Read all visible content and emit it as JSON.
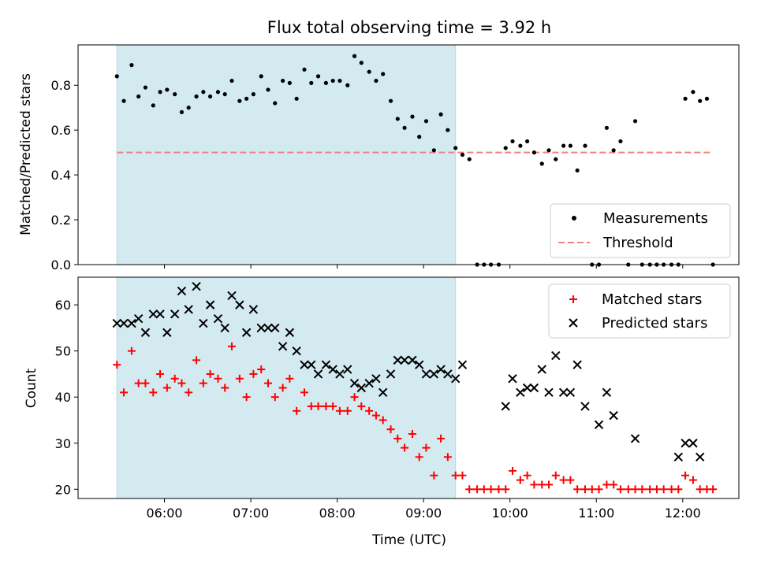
{
  "chart_data": [
    {
      "type": "scatter",
      "title": "Flux total observing time = 3.92 h",
      "xlabel": "",
      "ylabel": "Matched/Predicted stars",
      "ylim": [
        0,
        0.98
      ],
      "yticks": [
        0.0,
        0.2,
        0.4,
        0.6,
        0.8
      ],
      "ytick_labels": [
        "0.0",
        "0.2",
        "0.4",
        "0.6",
        "0.8"
      ],
      "legend_position": "lower-right",
      "shaded_span": {
        "start": 5.45,
        "end": 9.37,
        "color": "#d3eaf1"
      },
      "threshold": {
        "name": "Threshold",
        "value": 0.5,
        "start": 5.45,
        "end": 12.35,
        "color": "#f08080",
        "style": "dashed"
      },
      "series": [
        {
          "name": "Measurements",
          "marker": "dot",
          "color": "#000000",
          "x": [
            5.45,
            5.53,
            5.62,
            5.7,
            5.78,
            5.87,
            5.95,
            6.03,
            6.12,
            6.2,
            6.28,
            6.37,
            6.45,
            6.53,
            6.62,
            6.7,
            6.78,
            6.87,
            6.95,
            7.03,
            7.12,
            7.2,
            7.28,
            7.37,
            7.45,
            7.53,
            7.62,
            7.7,
            7.78,
            7.87,
            7.95,
            8.03,
            8.12,
            8.2,
            8.28,
            8.37,
            8.45,
            8.53,
            8.62,
            8.7,
            8.78,
            8.87,
            8.95,
            9.03,
            9.12,
            9.2,
            9.28,
            9.37,
            9.45,
            9.53,
            9.62,
            9.7,
            9.78,
            9.87,
            9.95,
            10.03,
            10.12,
            10.2,
            10.28,
            10.37,
            10.45,
            10.53,
            10.62,
            10.7,
            10.78,
            10.87,
            10.95,
            11.03,
            11.12,
            11.2,
            11.28,
            11.37,
            11.45,
            11.53,
            11.62,
            11.7,
            11.78,
            11.87,
            11.95,
            12.03,
            12.12,
            12.2,
            12.28,
            12.35
          ],
          "y": [
            0.84,
            0.73,
            0.89,
            0.75,
            0.79,
            0.71,
            0.77,
            0.78,
            0.76,
            0.68,
            0.7,
            0.75,
            0.77,
            0.75,
            0.77,
            0.76,
            0.82,
            0.73,
            0.74,
            0.76,
            0.84,
            0.78,
            0.72,
            0.82,
            0.81,
            0.74,
            0.87,
            0.81,
            0.84,
            0.81,
            0.82,
            0.82,
            0.8,
            0.93,
            0.9,
            0.86,
            0.82,
            0.85,
            0.73,
            0.65,
            0.61,
            0.66,
            0.57,
            0.64,
            0.51,
            0.67,
            0.6,
            0.52,
            0.49,
            0.47,
            0.0,
            0.0,
            0.0,
            0.0,
            0.52,
            0.55,
            0.53,
            0.55,
            0.5,
            0.45,
            0.51,
            0.47,
            0.53,
            0.53,
            0.42,
            0.53,
            0.0,
            0.0,
            0.61,
            0.51,
            0.55,
            0.0,
            0.64,
            0.0,
            0.0,
            0.0,
            0.0,
            0.0,
            0.0,
            0.74,
            0.77,
            0.73,
            0.74,
            0.0
          ]
        }
      ]
    },
    {
      "type": "scatter",
      "title": "",
      "xlabel": "Time (UTC)",
      "ylabel": "Count",
      "ylim": [
        18,
        66
      ],
      "yticks": [
        20,
        30,
        40,
        50,
        60
      ],
      "ytick_labels": [
        "20",
        "30",
        "40",
        "50",
        "60"
      ],
      "xlim": [
        5.0,
        12.65
      ],
      "xticks": [
        6,
        7,
        8,
        9,
        10,
        11,
        12
      ],
      "xtick_labels": [
        "06:00",
        "07:00",
        "08:00",
        "09:00",
        "10:00",
        "11:00",
        "12:00"
      ],
      "legend_position": "top-right",
      "series": [
        {
          "name": "Matched stars",
          "marker": "plus",
          "color": "#ff0000",
          "x": [
            5.45,
            5.53,
            5.62,
            5.7,
            5.78,
            5.87,
            5.95,
            6.03,
            6.12,
            6.2,
            6.28,
            6.37,
            6.45,
            6.53,
            6.62,
            6.7,
            6.78,
            6.87,
            6.95,
            7.03,
            7.12,
            7.2,
            7.28,
            7.37,
            7.45,
            7.53,
            7.62,
            7.7,
            7.78,
            7.87,
            7.95,
            8.03,
            8.12,
            8.2,
            8.28,
            8.37,
            8.45,
            8.53,
            8.62,
            8.7,
            8.78,
            8.87,
            8.95,
            9.03,
            9.12,
            9.2,
            9.28,
            9.37,
            9.45,
            9.53,
            9.62,
            9.7,
            9.78,
            9.87,
            9.95,
            10.03,
            10.12,
            10.2,
            10.28,
            10.37,
            10.45,
            10.53,
            10.62,
            10.7,
            10.78,
            10.87,
            10.95,
            11.03,
            11.12,
            11.2,
            11.28,
            11.37,
            11.45,
            11.53,
            11.62,
            11.7,
            11.78,
            11.87,
            11.95,
            12.03,
            12.12,
            12.2,
            12.28,
            12.35
          ],
          "y": [
            47,
            41,
            50,
            43,
            43,
            41,
            45,
            42,
            44,
            43,
            41,
            48,
            43,
            45,
            44,
            42,
            51,
            44,
            40,
            45,
            46,
            43,
            40,
            42,
            44,
            37,
            41,
            38,
            38,
            38,
            38,
            37,
            37,
            40,
            38,
            37,
            36,
            35,
            33,
            31,
            29,
            32,
            27,
            29,
            23,
            31,
            27,
            23,
            23,
            20,
            20,
            20,
            20,
            20,
            20,
            24,
            22,
            23,
            21,
            21,
            21,
            23,
            22,
            22,
            20,
            20,
            20,
            20,
            21,
            21,
            20,
            20,
            20,
            20,
            20,
            20,
            20,
            20,
            20,
            23,
            22,
            20,
            20,
            20
          ]
        },
        {
          "name": "Predicted stars",
          "marker": "x",
          "color": "#000000",
          "x": [
            5.45,
            5.53,
            5.62,
            5.7,
            5.78,
            5.87,
            5.95,
            6.03,
            6.12,
            6.2,
            6.28,
            6.37,
            6.45,
            6.53,
            6.62,
            6.7,
            6.78,
            6.87,
            6.95,
            7.03,
            7.12,
            7.2,
            7.28,
            7.37,
            7.45,
            7.53,
            7.62,
            7.7,
            7.78,
            7.87,
            7.95,
            8.03,
            8.12,
            8.2,
            8.28,
            8.37,
            8.45,
            8.53,
            8.62,
            8.7,
            8.78,
            8.87,
            8.95,
            9.03,
            9.12,
            9.2,
            9.28,
            9.37,
            9.45,
            9.95,
            10.03,
            10.12,
            10.2,
            10.28,
            10.37,
            10.45,
            10.53,
            10.62,
            10.7,
            10.78,
            10.87,
            11.03,
            11.12,
            11.2,
            11.45,
            11.95,
            12.03,
            12.12,
            12.2
          ],
          "y": [
            56,
            56,
            56,
            57,
            54,
            58,
            58,
            54,
            58,
            63,
            59,
            64,
            56,
            60,
            57,
            55,
            62,
            60,
            54,
            59,
            55,
            55,
            55,
            51,
            54,
            50,
            47,
            47,
            45,
            47,
            46,
            45,
            46,
            43,
            42,
            43,
            44,
            41,
            45,
            48,
            48,
            48,
            47,
            45,
            45,
            46,
            45,
            44,
            47,
            38,
            44,
            41,
            42,
            42,
            46,
            41,
            49,
            41,
            41,
            47,
            38,
            34,
            41,
            36,
            31,
            27,
            30,
            30,
            27
          ]
        }
      ]
    }
  ]
}
